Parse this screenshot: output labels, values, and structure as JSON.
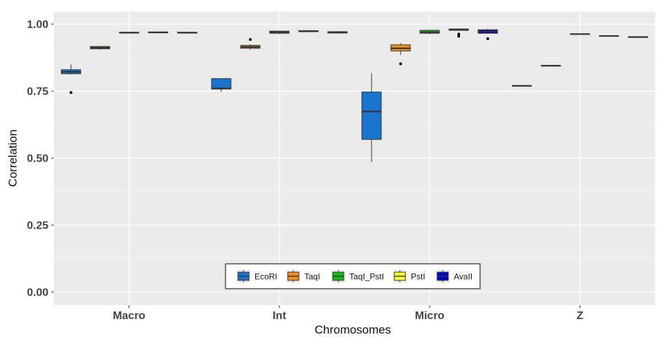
{
  "chart_data": {
    "type": "boxplot",
    "xlabel": "Chromosomes",
    "ylabel": "Correlation",
    "ylim": [
      0.0,
      1.0
    ],
    "yticks": [
      "0.00",
      "0.25",
      "0.50",
      "0.75",
      "1.00"
    ],
    "ytick_values": [
      0.0,
      0.25,
      0.5,
      0.75,
      1.0
    ],
    "categories": [
      "Macro",
      "Int",
      "Micro",
      "Z"
    ],
    "grid": true,
    "legend_position": "bottom-center",
    "series": [
      {
        "name": "EcoRI",
        "color": "#1874CD",
        "boxes": [
          {
            "category": "Macro",
            "min": 0.812,
            "q1": 0.815,
            "median": 0.822,
            "q3": 0.83,
            "max": 0.85,
            "outliers": [
              0.745
            ]
          },
          {
            "category": "Int",
            "min": 0.748,
            "q1": 0.758,
            "median": 0.76,
            "q3": 0.797,
            "max": 0.797,
            "outliers": []
          },
          {
            "category": "Micro",
            "min": 0.485,
            "q1": 0.57,
            "median": 0.674,
            "q3": 0.747,
            "max": 0.818,
            "outliers": []
          },
          {
            "category": "Z",
            "min": 0.77,
            "q1": 0.77,
            "median": 0.77,
            "q3": 0.77,
            "max": 0.77,
            "outliers": []
          }
        ]
      },
      {
        "name": "TaqI",
        "color": "#F28E1C",
        "boxes": [
          {
            "category": "Macro",
            "min": 0.905,
            "q1": 0.908,
            "median": 0.912,
            "q3": 0.917,
            "max": 0.919,
            "outliers": []
          },
          {
            "category": "Int",
            "min": 0.905,
            "q1": 0.91,
            "median": 0.915,
            "q3": 0.921,
            "max": 0.925,
            "outliers": [
              0.943
            ]
          },
          {
            "category": "Micro",
            "min": 0.885,
            "q1": 0.9,
            "median": 0.91,
            "q3": 0.923,
            "max": 0.93,
            "outliers": [
              0.852
            ]
          },
          {
            "category": "Z",
            "min": 0.845,
            "q1": 0.845,
            "median": 0.845,
            "q3": 0.845,
            "max": 0.845,
            "outliers": []
          }
        ]
      },
      {
        "name": "TaqI_PstI",
        "color": "#18B818",
        "boxes": [
          {
            "category": "Macro",
            "min": 0.966,
            "q1": 0.967,
            "median": 0.968,
            "q3": 0.97,
            "max": 0.971,
            "outliers": []
          },
          {
            "category": "Int",
            "min": 0.962,
            "q1": 0.966,
            "median": 0.97,
            "q3": 0.974,
            "max": 0.976,
            "outliers": []
          },
          {
            "category": "Micro",
            "min": 0.962,
            "q1": 0.966,
            "median": 0.97,
            "q3": 0.977,
            "max": 0.98,
            "outliers": []
          },
          {
            "category": "Z",
            "min": 0.963,
            "q1": 0.963,
            "median": 0.963,
            "q3": 0.963,
            "max": 0.963,
            "outliers": []
          }
        ]
      },
      {
        "name": "PstI",
        "color": "#FFFF33",
        "boxes": [
          {
            "category": "Macro",
            "min": 0.967,
            "q1": 0.968,
            "median": 0.969,
            "q3": 0.971,
            "max": 0.972,
            "outliers": []
          },
          {
            "category": "Int",
            "min": 0.97,
            "q1": 0.972,
            "median": 0.974,
            "q3": 0.976,
            "max": 0.977,
            "outliers": []
          },
          {
            "category": "Micro",
            "min": 0.975,
            "q1": 0.977,
            "median": 0.98,
            "q3": 0.982,
            "max": 0.984,
            "outliers": [
              0.963,
              0.955
            ]
          },
          {
            "category": "Z",
            "min": 0.956,
            "q1": 0.956,
            "median": 0.956,
            "q3": 0.956,
            "max": 0.956,
            "outliers": []
          }
        ]
      },
      {
        "name": "AvaII",
        "color": "#0000CD",
        "boxes": [
          {
            "category": "Macro",
            "min": 0.966,
            "q1": 0.967,
            "median": 0.968,
            "q3": 0.97,
            "max": 0.971,
            "outliers": []
          },
          {
            "category": "Int",
            "min": 0.965,
            "q1": 0.967,
            "median": 0.969,
            "q3": 0.972,
            "max": 0.974,
            "outliers": []
          },
          {
            "category": "Micro",
            "min": 0.965,
            "q1": 0.966,
            "median": 0.973,
            "q3": 0.979,
            "max": 0.983,
            "outliers": [
              0.946
            ]
          },
          {
            "category": "Z",
            "min": 0.952,
            "q1": 0.952,
            "median": 0.952,
            "q3": 0.952,
            "max": 0.952,
            "outliers": []
          }
        ]
      }
    ]
  }
}
